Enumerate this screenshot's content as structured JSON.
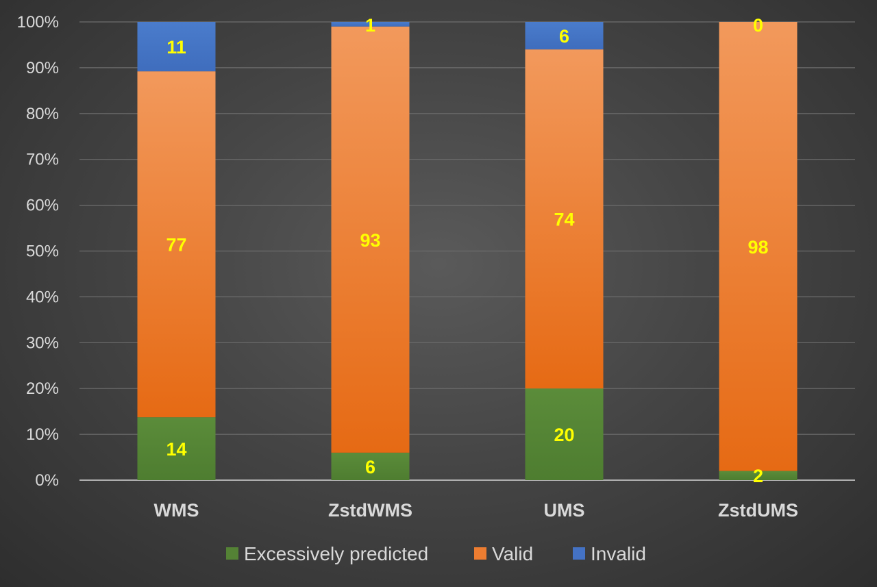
{
  "chart_data": {
    "type": "bar",
    "stacked": true,
    "normalized": true,
    "categories": [
      "WMS",
      "ZstdWMS",
      "UMS",
      "ZstdUMS"
    ],
    "series": [
      {
        "name": "Excessively predicted",
        "values": [
          14,
          6,
          20,
          2
        ],
        "color": "#548235"
      },
      {
        "name": "Valid",
        "values": [
          77,
          93,
          74,
          98
        ],
        "color": "#ed7d31"
      },
      {
        "name": "Invalid",
        "values": [
          11,
          1,
          6,
          0
        ],
        "color": "#4472c4"
      }
    ],
    "yticks": [
      "0%",
      "10%",
      "20%",
      "30%",
      "40%",
      "50%",
      "60%",
      "70%",
      "80%",
      "90%",
      "100%"
    ],
    "ylim": [
      0,
      100
    ],
    "title": "",
    "xlabel": "",
    "ylabel": "",
    "grid": true,
    "legend_position": "bottom",
    "data_label_color": "#ffff00"
  }
}
